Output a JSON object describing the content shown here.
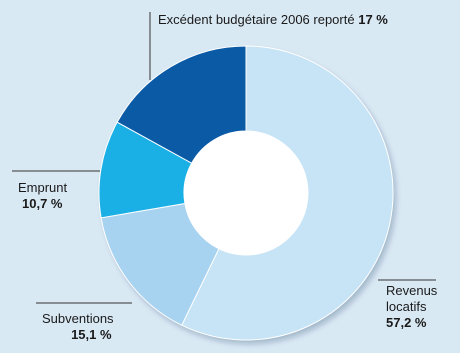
{
  "chart_data": {
    "type": "donut",
    "slices": [
      {
        "label": "Revenus locatifs",
        "label_lines": [
          "Revenus",
          "locatifs"
        ],
        "value": 57.2,
        "value_text": "57,2 %",
        "color": "#c6e4f6"
      },
      {
        "label": "Subventions",
        "value": 15.1,
        "value_text": "15,1 %",
        "color": "#a8d3f0"
      },
      {
        "label": "Emprunt",
        "value": 10.7,
        "value_text": "10,7 %",
        "color": "#1ab0e6"
      },
      {
        "label": "Excédent budgétaire 2006 reporté",
        "value": 17.0,
        "value_text": "17 %",
        "color": "#0a5aa6"
      }
    ],
    "start_angle_deg": 0,
    "direction": "clockwise",
    "hole_color": "#ffffff",
    "leader_color": "#333333"
  }
}
